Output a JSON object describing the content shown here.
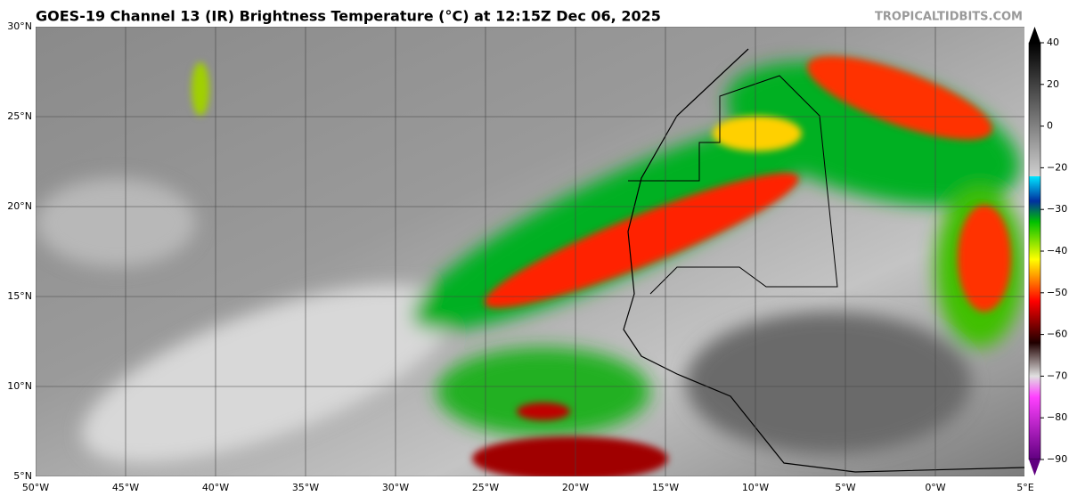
{
  "header": {
    "title": "GOES-19 Channel 13 (IR) Brightness Temperature (°C) at 12:15Z Dec 06, 2025",
    "site": "TROPICALTIDBITS.COM"
  },
  "map": {
    "lat_labels": [
      "30°N",
      "25°N",
      "20°N",
      "15°N",
      "10°N",
      "5°N"
    ],
    "lon_labels": [
      "50°W",
      "45°W",
      "40°W",
      "35°W",
      "30°W",
      "25°W",
      "20°W",
      "15°W",
      "10°W",
      "5°W",
      "0°W",
      "5°E"
    ]
  },
  "colorbar": {
    "ticks": [
      "40",
      "20",
      "0",
      "−20",
      "−30",
      "−40",
      "−50",
      "−60",
      "−70",
      "−80",
      "−90"
    ]
  }
}
